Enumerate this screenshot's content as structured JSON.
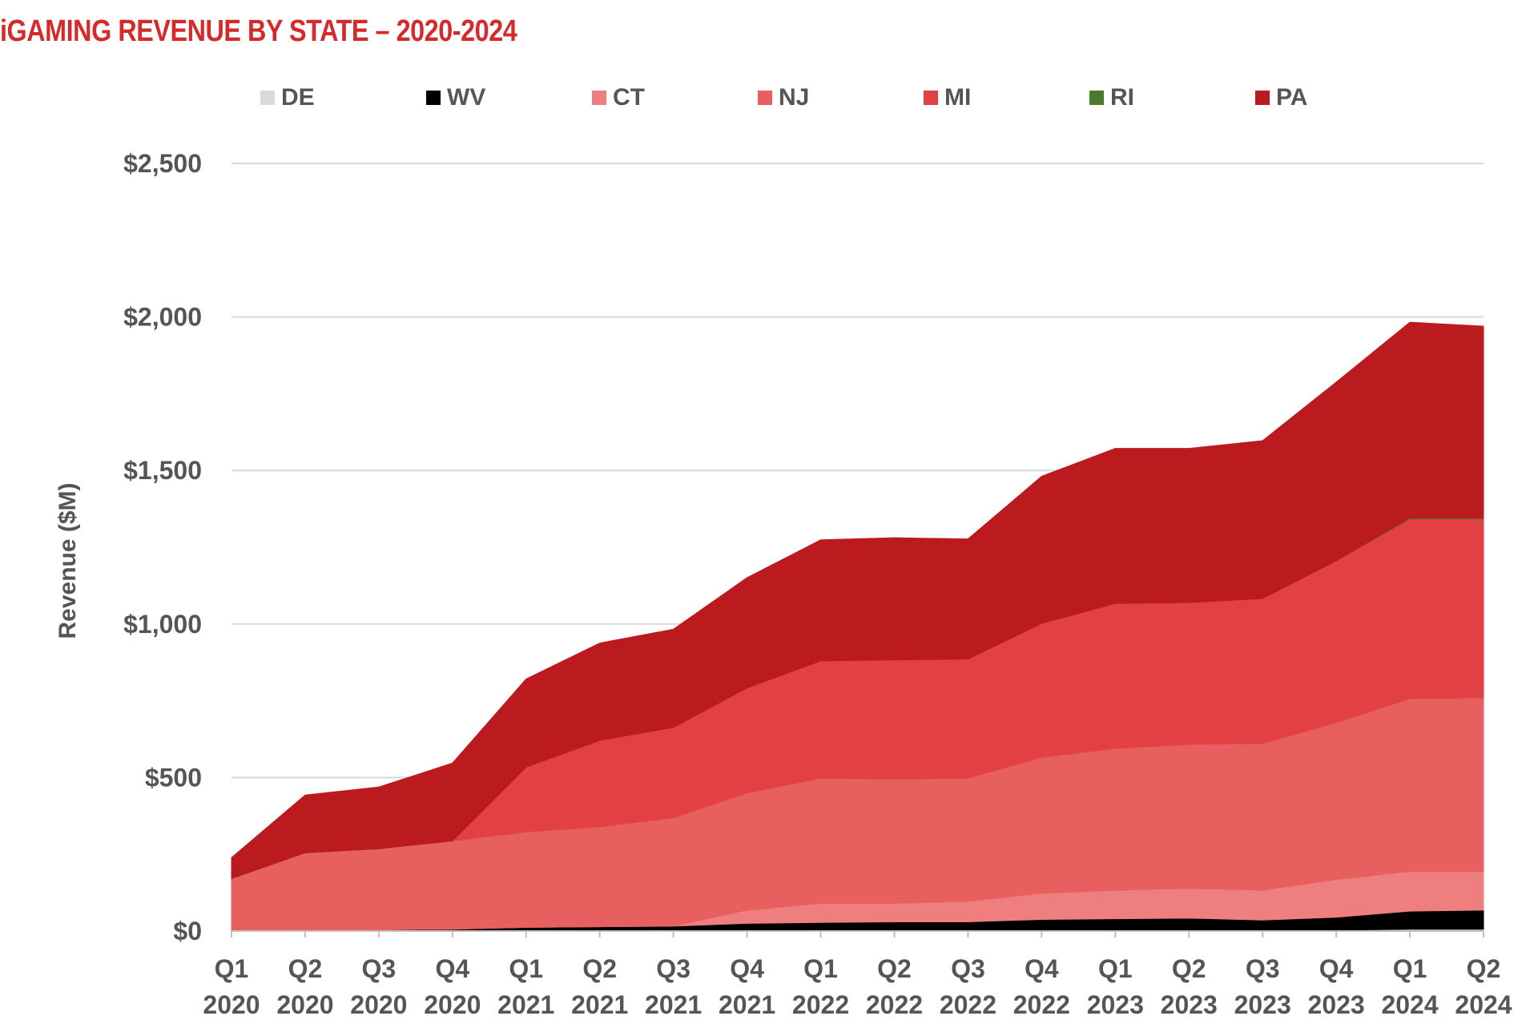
{
  "chart_data": {
    "type": "area",
    "stacked": true,
    "title": "iGAMING REVENUE BY STATE – 2020-2024",
    "xlabel": "",
    "ylabel": "Revenue ($M)",
    "ylim": [
      0,
      2500
    ],
    "yticks": [
      0,
      500,
      1000,
      1500,
      2000,
      2500
    ],
    "ytick_labels": [
      "$0",
      "$500",
      "$1,000",
      "$1,500",
      "$2,000",
      "$2,500"
    ],
    "grid": true,
    "legend_position": "top",
    "categories": [
      [
        "Q1",
        "2020"
      ],
      [
        "Q2",
        "2020"
      ],
      [
        "Q3",
        "2020"
      ],
      [
        "Q4",
        "2020"
      ],
      [
        "Q1",
        "2021"
      ],
      [
        "Q2",
        "2021"
      ],
      [
        "Q3",
        "2021"
      ],
      [
        "Q4",
        "2021"
      ],
      [
        "Q1",
        "2022"
      ],
      [
        "Q2",
        "2022"
      ],
      [
        "Q3",
        "2022"
      ],
      [
        "Q4",
        "2022"
      ],
      [
        "Q1",
        "2023"
      ],
      [
        "Q2",
        "2023"
      ],
      [
        "Q3",
        "2023"
      ],
      [
        "Q4",
        "2023"
      ],
      [
        "Q1",
        "2024"
      ],
      [
        "Q2",
        "2024"
      ]
    ],
    "series": [
      {
        "name": "DE",
        "color": "#d9d9d9",
        "values": [
          2,
          2,
          2,
          2,
          2,
          2,
          2,
          2,
          2,
          2,
          2,
          2,
          2,
          2,
          2,
          3,
          6,
          6
        ]
      },
      {
        "name": "WV",
        "color": "#000000",
        "values": [
          0,
          1,
          2,
          4,
          10,
          12,
          14,
          23,
          26,
          28,
          28,
          36,
          38,
          40,
          34,
          42,
          59,
          62
        ]
      },
      {
        "name": "CT",
        "color": "#ef7f7f",
        "values": [
          0,
          0,
          0,
          0,
          0,
          0,
          0,
          43,
          62,
          60,
          67,
          85,
          93,
          97,
          97,
          123,
          129,
          126
        ]
      },
      {
        "name": "NJ",
        "color": "#e85f5f",
        "values": [
          169,
          252,
          264,
          288,
          311,
          326,
          353,
          382,
          408,
          405,
          401,
          443,
          462,
          469,
          478,
          511,
          563,
          566
        ]
      },
      {
        "name": "MI",
        "color": "#e24043",
        "values": [
          0,
          0,
          0,
          0,
          211,
          281,
          294,
          342,
          382,
          388,
          388,
          436,
          472,
          462,
          472,
          527,
          585,
          582
        ]
      },
      {
        "name": "RI",
        "color": "#4a7a2c",
        "values": [
          0,
          0,
          0,
          0,
          0,
          0,
          0,
          0,
          0,
          0,
          0,
          0,
          0,
          0,
          0,
          0,
          3,
          3
        ]
      },
      {
        "name": "PA",
        "color": "#bb1a1e",
        "values": [
          68,
          188,
          201,
          253,
          287,
          317,
          320,
          359,
          394,
          398,
          391,
          479,
          505,
          502,
          514,
          582,
          638,
          625
        ]
      }
    ]
  }
}
